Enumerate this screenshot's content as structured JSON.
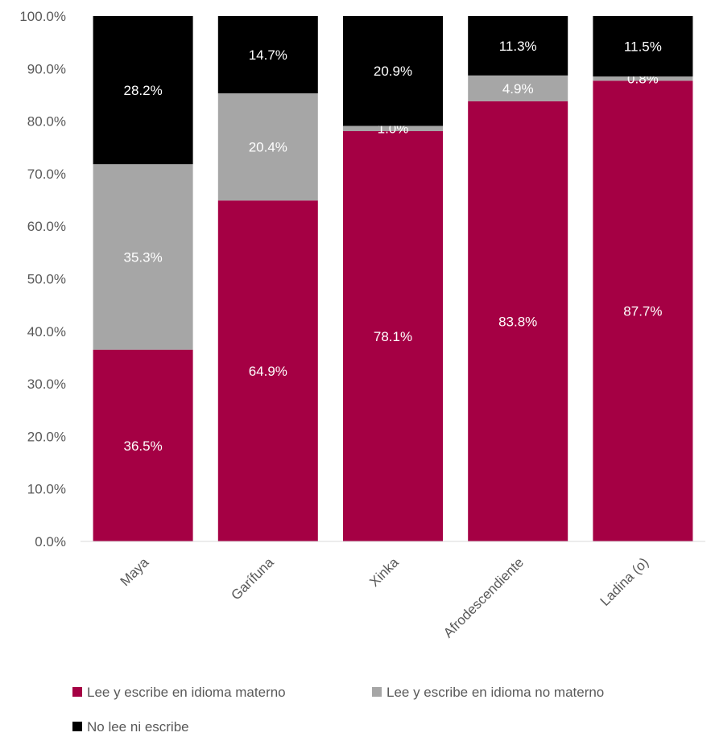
{
  "chart_data": {
    "type": "bar",
    "stacked": true,
    "categories": [
      "Maya",
      "Garífuna",
      "Xinka",
      "Afrodescendiente",
      "Ladina (o)"
    ],
    "series": [
      {
        "name": "Lee y escribe en idioma materno",
        "color": "#A50044",
        "values": [
          36.5,
          64.9,
          78.1,
          83.8,
          87.7
        ],
        "labels": [
          "36.5%",
          "64.9%",
          "78.1%",
          "83.8%",
          "87.7%"
        ]
      },
      {
        "name": "Lee y escribe en idioma no materno",
        "color": "#A6A6A6",
        "values": [
          35.3,
          20.4,
          1.0,
          4.9,
          0.8
        ],
        "labels": [
          "35.3%",
          "20.4%",
          "1.0%",
          "4.9%",
          "0.8%"
        ]
      },
      {
        "name": "No lee ni escribe",
        "color": "#000000",
        "values": [
          28.2,
          14.7,
          20.9,
          11.3,
          11.5
        ],
        "labels": [
          "28.2%",
          "14.7%",
          "20.9%",
          "11.3%",
          "11.5%"
        ]
      }
    ],
    "ylim": [
      0,
      100
    ],
    "yticks": [
      "0.0%",
      "10.0%",
      "20.0%",
      "30.0%",
      "40.0%",
      "50.0%",
      "60.0%",
      "70.0%",
      "80.0%",
      "90.0%",
      "100.0%"
    ],
    "xlabel": "",
    "ylabel": "",
    "title": "",
    "grid": false,
    "legend_position": "bottom"
  }
}
